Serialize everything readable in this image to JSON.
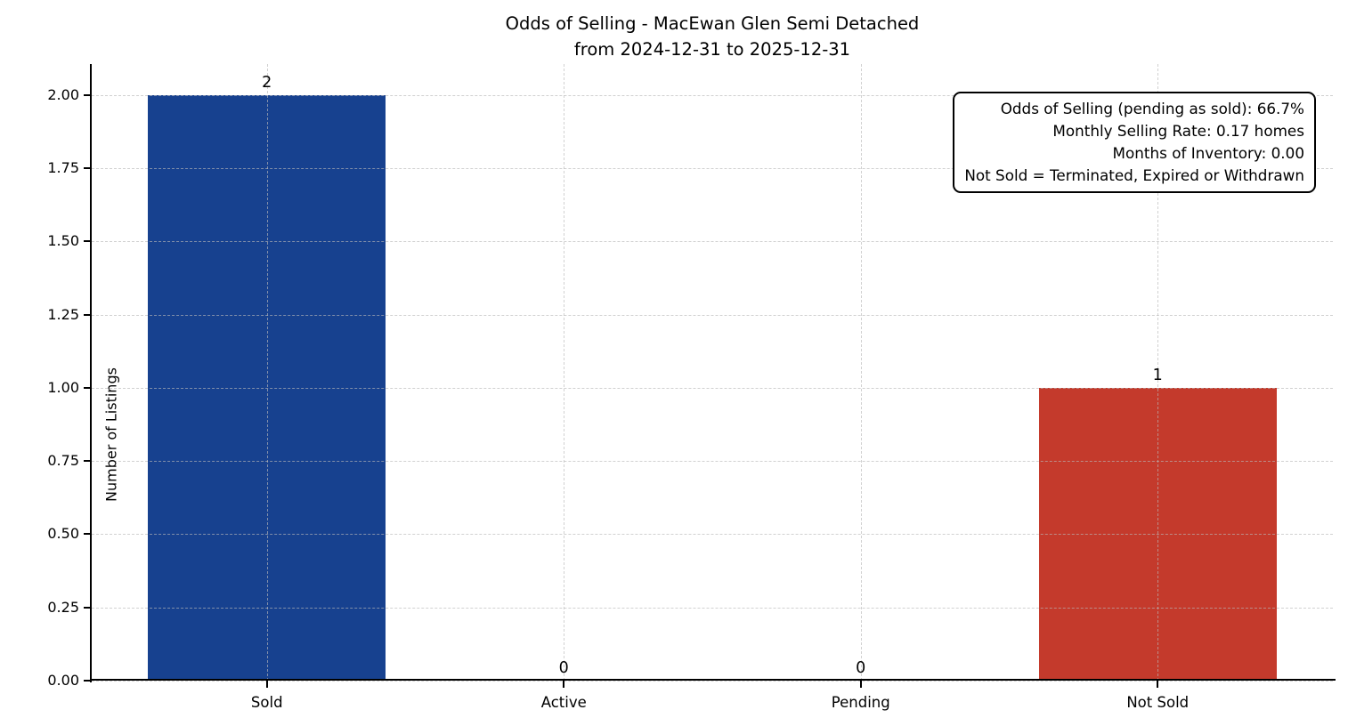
{
  "chart_data": {
    "type": "bar",
    "title": "Odds of Selling - MacEwan Glen Semi Detached",
    "subtitle": "from 2024-12-31 to 2025-12-31",
    "ylabel": "Number of Listings",
    "xlabel": "",
    "categories": [
      "Sold",
      "Active",
      "Pending",
      "Not Sold"
    ],
    "values": [
      2,
      0,
      0,
      1
    ],
    "value_labels": [
      "2",
      "0",
      "0",
      "1"
    ],
    "bar_colors": [
      "#17418F",
      null,
      null,
      "#C43A2C"
    ],
    "bar_width": 0.8,
    "ylim": [
      0,
      2.106
    ],
    "xlim": [
      -0.59,
      3.59
    ],
    "yticks": [
      0,
      0.25,
      0.5,
      0.75,
      1,
      1.25,
      1.5,
      1.75,
      2
    ],
    "ytick_labels": [
      "0.00",
      "0.25",
      "0.50",
      "0.75",
      "1.00",
      "1.25",
      "1.50",
      "1.75",
      "2.00"
    ],
    "grid": {
      "style": "dashed",
      "color": "#BDBDBD",
      "horizontal": true,
      "vertical": true
    },
    "legend": null,
    "annotation": {
      "position": "top-right",
      "lines": [
        "Odds of Selling (pending as sold): 66.7%",
        "Monthly Selling Rate: 0.17 homes",
        "Months of Inventory: 0.00",
        "Not Sold = Terminated, Expired or Withdrawn"
      ]
    }
  }
}
